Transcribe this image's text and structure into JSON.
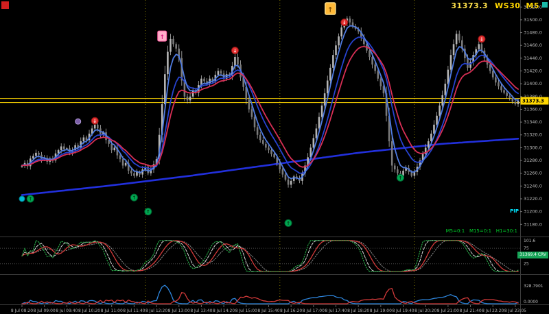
{
  "header": {
    "price": "31373.3",
    "symbol": "WS30",
    "timeframe": "M5"
  },
  "overlays": {
    "mtf_text": "M5=0:1   M15=0:1   H1=30:1",
    "pip_label": "PIP",
    "crv_badge": "31369.4 CRV"
  },
  "colors": {
    "background": "#000000",
    "bull_body": "#b5b5b5",
    "bear_body": "#7a7a7a",
    "ma_fast_blue": "#4f7be0",
    "ma_mid_blue": "#2743d0",
    "ma_red": "#d82f55",
    "ma_slow_blue": "#2230dd",
    "level_yellow": "#ffd700",
    "buy_green": "#00a651",
    "alert_red": "#e33030",
    "badge_pink": "#ffaec9",
    "badge_orange": "#ffb938"
  },
  "chart_data": {
    "type": "candlestick",
    "title": "WS30 M5 intraday chart with MA ribbon, signal arrows and two sub-indicators",
    "symbol": "WS30",
    "timeframe": "M5",
    "current_price": 31373.3,
    "current_price_label": "31373.3",
    "price_axis": {
      "min": 31161,
      "max": 31531,
      "tick_start": 31180,
      "tick_end": 31520,
      "tick_step": 20
    },
    "x_labels": [
      "8 Jul 08:20",
      "8 Jul 09:00",
      "8 Jul 09:40",
      "8 Jul 10:20",
      "8 Jul 11:00",
      "8 Jul 11:40",
      "8 Jul 12:20",
      "8 Jul 13:00",
      "8 Jul 13:40",
      "8 Jul 14:20",
      "8 Jul 15:00",
      "8 Jul 15:40",
      "8 Jul 16:20",
      "8 Jul 17:00",
      "8 Jul 17:40",
      "8 Jul 18:20",
      "8 Jul 19:00",
      "8 Jul 19:40",
      "8 Jul 20:20",
      "8 Jul 21:00",
      "8 Jul 21:40",
      "8 Jul 22:20",
      "8 Jul 23:05"
    ],
    "bars_per_label": 8,
    "hlines": [
      31377.0,
      31370.5
    ],
    "vline_bars": [
      44,
      92,
      140
    ],
    "closes": [
      31272,
      31276,
      31271,
      31283,
      31287,
      31292,
      31289,
      31281,
      31284,
      31278,
      31283,
      31280,
      31291,
      31296,
      31302,
      31298,
      31299,
      31292,
      31296,
      31304,
      31300,
      31310,
      31316,
      31312,
      31322,
      31330,
      31336,
      31330,
      31320,
      31324,
      31312,
      31306,
      31296,
      31300,
      31288,
      31282,
      31272,
      31276,
      31264,
      31260,
      31256,
      31262,
      31258,
      31266,
      31270,
      31260,
      31266,
      31274,
      31282,
      31320,
      31368,
      31415,
      31450,
      31470,
      31462,
      31455,
      31440,
      31405,
      31380,
      31374,
      31380,
      31390,
      31386,
      31398,
      31408,
      31404,
      31400,
      31408,
      31404,
      31414,
      31420,
      31416,
      31408,
      31415,
      31412,
      31428,
      31442,
      31430,
      31410,
      31395,
      31375,
      31360,
      31348,
      31332,
      31320,
      31312,
      31306,
      31300,
      31296,
      31290,
      31285,
      31276,
      31266,
      31258,
      31250,
      31242,
      31248,
      31255,
      31252,
      31248,
      31260,
      31272,
      31285,
      31300,
      31315,
      31330,
      31348,
      31366,
      31385,
      31405,
      31425,
      31445,
      31460,
      31474,
      31488,
      31495,
      31502,
      31496,
      31490,
      31486,
      31482,
      31472,
      31462,
      31452,
      31442,
      31430,
      31420,
      31408,
      31396,
      31385,
      31350,
      31310,
      31272,
      31266,
      31260,
      31256,
      31264,
      31268,
      31262,
      31256,
      31262,
      31270,
      31280,
      31290,
      31300,
      31310,
      31322,
      31336,
      31350,
      31366,
      31382,
      31400,
      31422,
      31445,
      31462,
      31478,
      31468,
      31455,
      31440,
      31425,
      31434,
      31445,
      31454,
      31462,
      31452,
      31440,
      31430,
      31420,
      31410,
      31402,
      31396,
      31390,
      31386,
      31381,
      31378,
      31372,
      31368,
      31373.3
    ],
    "slow_ma_points": [
      [
        0,
        31226
      ],
      [
        30,
        31240
      ],
      [
        60,
        31256
      ],
      [
        90,
        31274
      ],
      [
        120,
        31292
      ],
      [
        150,
        31306
      ],
      [
        177,
        31314
      ]
    ],
    "markers": {
      "buy": [
        {
          "bar": 3,
          "price": 31220
        },
        {
          "bar": 40,
          "price": 31222
        },
        {
          "bar": 45,
          "price": 31200
        },
        {
          "bar": 95,
          "price": 31182
        },
        {
          "bar": 135,
          "price": 31253
        }
      ],
      "alert": [
        {
          "bar": 26,
          "price": 31342
        },
        {
          "bar": 76,
          "price": 31452
        },
        {
          "bar": 115,
          "price": 31496
        },
        {
          "bar": 164,
          "price": 31470
        }
      ],
      "badge_pink": {
        "bar": 50,
        "price": 31474,
        "glyph": "↑"
      },
      "badge_orange": {
        "bar": 110,
        "price": 31517,
        "glyph": "↑"
      },
      "dot_purple": {
        "bar": 20,
        "price": 31341
      },
      "dot_cyan": {
        "bar": 0,
        "price": 31220
      }
    },
    "pane1": {
      "kind": "stochastic-oscillator",
      "levels": [
        75,
        25
      ],
      "labels": [
        "101.6",
        "75",
        "25"
      ],
      "range_max": 104
    },
    "pane2": {
      "kind": "momentum-spikes",
      "labels": [
        "328.7901",
        "0.0000"
      ]
    }
  }
}
